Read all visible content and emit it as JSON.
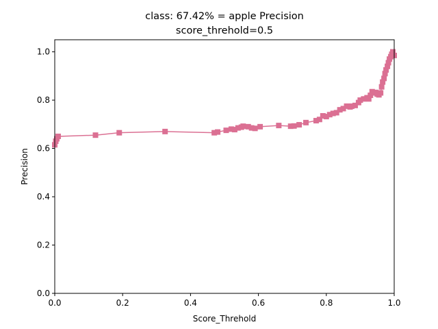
{
  "chart_data": {
    "type": "line",
    "title_line1": "class: 67.42% = apple Precision",
    "title_line2": "score_threhold=0.5",
    "xlabel": "Score_Threhold",
    "ylabel": "Precision",
    "xlim": [
      0.0,
      1.0
    ],
    "ylim": [
      0.0,
      1.05
    ],
    "xticks": [
      "0.0",
      "0.2",
      "0.4",
      "0.6",
      "0.8",
      "1.0"
    ],
    "yticks": [
      "0.0",
      "0.2",
      "0.4",
      "0.6",
      "0.8",
      "1.0"
    ],
    "grid": false,
    "color": "#db7093",
    "marker": "square",
    "series": [
      {
        "x": [
          0.0,
          0.003,
          0.006,
          0.01,
          0.12,
          0.19,
          0.325,
          0.47,
          0.48,
          0.505,
          0.52,
          0.53,
          0.54,
          0.55,
          0.555,
          0.57,
          0.58,
          0.59,
          0.605,
          0.66,
          0.695,
          0.705,
          0.72,
          0.74,
          0.77,
          0.78,
          0.79,
          0.8,
          0.81,
          0.82,
          0.83,
          0.84,
          0.85,
          0.86,
          0.87,
          0.875,
          0.885,
          0.895,
          0.9,
          0.91,
          0.92,
          0.925,
          0.93,
          0.935,
          0.94,
          0.945,
          0.95,
          0.955,
          0.96,
          0.963,
          0.966,
          0.97,
          0.973,
          0.976,
          0.98,
          0.983,
          0.986,
          0.99,
          0.993,
          0.996,
          1.0
        ],
        "y": [
          0.615,
          0.63,
          0.64,
          0.65,
          0.655,
          0.665,
          0.67,
          0.665,
          0.668,
          0.675,
          0.68,
          0.678,
          0.685,
          0.688,
          0.692,
          0.69,
          0.685,
          0.683,
          0.69,
          0.695,
          0.692,
          0.693,
          0.698,
          0.707,
          0.715,
          0.72,
          0.735,
          0.732,
          0.74,
          0.745,
          0.748,
          0.76,
          0.765,
          0.775,
          0.772,
          0.775,
          0.778,
          0.79,
          0.8,
          0.805,
          0.81,
          0.805,
          0.82,
          0.835,
          0.83,
          0.832,
          0.825,
          0.822,
          0.83,
          0.855,
          0.875,
          0.89,
          0.91,
          0.925,
          0.94,
          0.955,
          0.97,
          0.98,
          0.99,
          1.0,
          0.985
        ]
      }
    ]
  }
}
